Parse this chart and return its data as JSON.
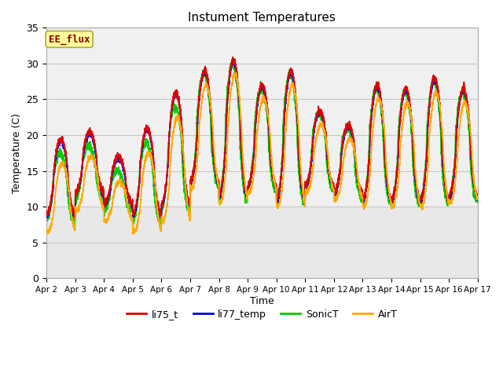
{
  "title": "Instument Temperatures",
  "xlabel": "Time",
  "ylabel": "Temperature (C)",
  "ylim": [
    0,
    35
  ],
  "bg_color": "#ffffff",
  "plot_bg_color": "#e8e8e8",
  "plot_upper_bg": "#f0f0f0",
  "grid_color": "#c8c8c8",
  "xtick_labels": [
    "Apr 2",
    "Apr 3",
    "Apr 4",
    "Apr 5",
    "Apr 6",
    "Apr 7",
    "Apr 8",
    "Apr 9",
    "Apr 10",
    "Apr 11",
    "Apr 12",
    "Apr 13",
    "Apr 14",
    "Apr 15",
    "Apr 16",
    "Apr 17"
  ],
  "ytick_vals": [
    0,
    5,
    10,
    15,
    20,
    25,
    30,
    35
  ],
  "colors": {
    "li75_t": "#dd0000",
    "li77_temp": "#0000dd",
    "SonicT": "#00cc00",
    "AirT": "#ffaa00"
  },
  "line_width": 1.2,
  "label_box_text": "EE_flux",
  "label_box_bg": "#ffff99",
  "label_box_edge": "#aaaa44",
  "label_box_text_color": "#880000",
  "legend_entries": [
    "li75_t",
    "li77_temp",
    "SonicT",
    "AirT"
  ],
  "n_days": 15,
  "mins": [
    9.0,
    12.0,
    10.5,
    9.0,
    10.5,
    13.5,
    11.5,
    13.0,
    11.0,
    13.0,
    12.0,
    11.0,
    11.0,
    11.0,
    11.5
  ],
  "maxs": [
    19.5,
    20.5,
    17.0,
    21.0,
    26.0,
    29.0,
    30.5,
    27.0,
    29.0,
    23.5,
    21.5,
    27.0,
    26.5,
    28.0,
    26.5
  ]
}
